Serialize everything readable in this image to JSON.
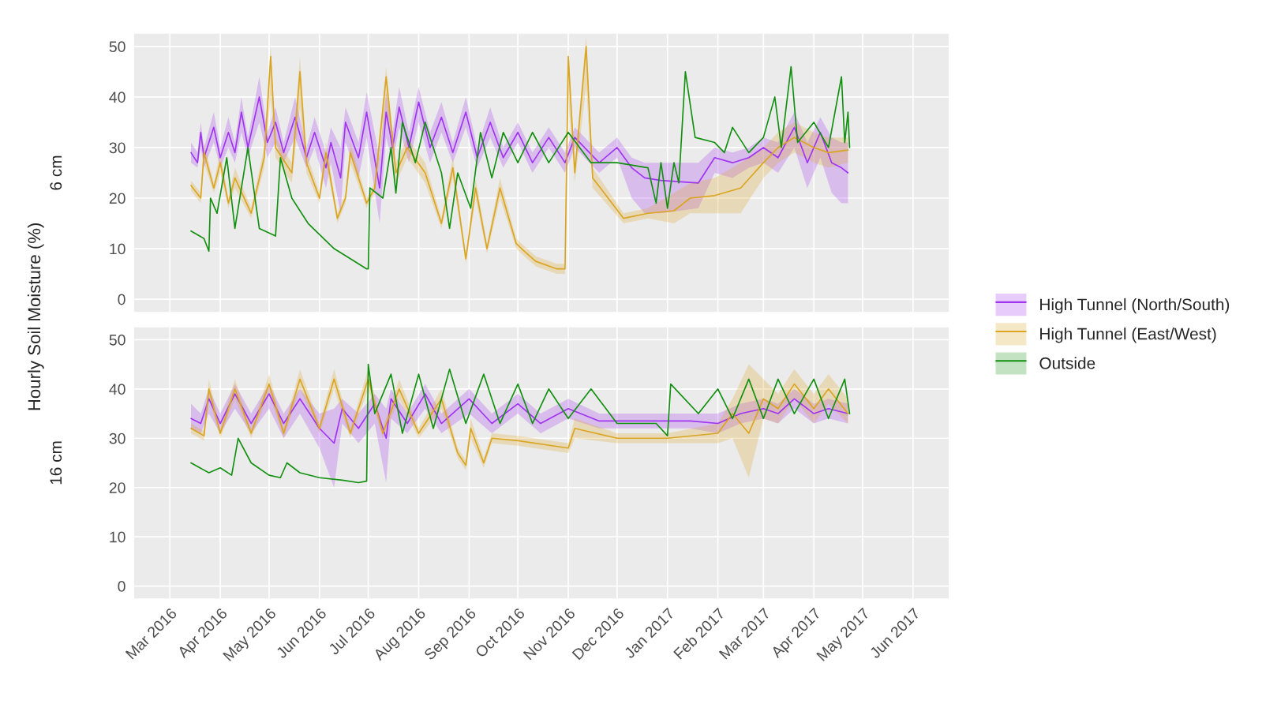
{
  "chart_data": [
    {
      "type": "line",
      "ylabel": "6 cm",
      "annotations": [
        "Hourly Soil Moisture (%)"
      ],
      "xlim": [
        "2016-02-08",
        "2017-06-23"
      ],
      "ylim": [
        -2.5,
        52.5
      ],
      "yticks": [
        0,
        10,
        20,
        30,
        40,
        50
      ],
      "xticks": [
        {
          "value": "2016-03-01",
          "label": null
        },
        {
          "value": "2016-04-01",
          "label": null
        },
        {
          "value": "2016-05-01",
          "label": null
        },
        {
          "value": "2016-06-01",
          "label": null
        },
        {
          "value": "2016-07-01",
          "label": null
        },
        {
          "value": "2016-08-01",
          "label": null
        },
        {
          "value": "2016-09-01",
          "label": null
        },
        {
          "value": "2016-10-01",
          "label": null
        },
        {
          "value": "2016-11-01",
          "label": null
        },
        {
          "value": "2016-12-01",
          "label": null
        },
        {
          "value": "2017-01-01",
          "label": null
        },
        {
          "value": "2017-02-01",
          "label": null
        },
        {
          "value": "2017-03-01",
          "label": null
        },
        {
          "value": "2017-04-01",
          "label": null
        },
        {
          "value": "2017-05-01",
          "label": null
        },
        {
          "value": "2017-06-01",
          "label": null
        }
      ],
      "tick_labels": "y",
      "grid": true,
      "legend": "right",
      "series": [
        {
          "name": "High Tunnel (North/South)",
          "color": "#a034f0",
          "x": [
            "2016-03-14",
            "2016-03-18",
            "2016-03-20",
            "2016-03-22",
            "2016-03-28",
            "2016-04-01",
            "2016-04-06",
            "2016-04-10",
            "2016-04-14",
            "2016-04-18",
            "2016-04-25",
            "2016-04-30",
            "2016-05-05",
            "2016-05-10",
            "2016-05-17",
            "2016-05-24",
            "2016-05-29",
            "2016-06-05",
            "2016-06-08",
            "2016-06-14",
            "2016-06-17",
            "2016-06-25",
            "2016-06-30",
            "2016-07-08",
            "2016-07-12",
            "2016-07-16",
            "2016-07-20",
            "2016-07-26",
            "2016-08-01",
            "2016-08-08",
            "2016-08-15",
            "2016-08-22",
            "2016-08-30",
            "2016-09-06",
            "2016-09-14",
            "2016-09-22",
            "2016-10-01",
            "2016-10-10",
            "2016-10-20",
            "2016-10-30",
            "2016-11-05",
            "2016-11-20",
            "2016-12-01",
            "2016-12-10",
            "2016-12-18",
            "2016-12-28",
            "2017-01-20",
            "2017-01-30",
            "2017-02-10",
            "2017-02-20",
            "2017-03-01",
            "2017-03-10",
            "2017-03-20",
            "2017-03-28",
            "2017-04-05",
            "2017-04-12",
            "2017-04-18",
            "2017-04-22"
          ],
          "values": [
            29,
            27,
            33,
            28,
            34,
            28,
            33,
            29,
            37,
            30,
            40,
            31,
            35,
            29,
            36,
            28,
            33,
            26,
            31,
            24,
            35,
            28,
            37,
            22,
            37,
            30,
            38,
            30,
            39,
            30,
            36,
            29,
            37,
            28,
            35,
            28,
            33,
            27,
            32,
            27,
            32,
            27,
            30,
            26,
            24,
            23.5,
            23,
            28,
            27,
            28,
            30,
            28,
            34,
            27,
            33,
            27,
            26,
            25
          ],
          "lower": [
            27,
            26,
            30,
            26,
            31,
            26,
            30,
            27,
            33,
            28,
            35,
            28,
            31,
            27,
            32,
            26,
            30,
            22,
            27,
            17,
            31,
            24,
            32,
            15,
            32,
            27,
            34,
            27,
            35,
            27,
            33,
            27,
            34,
            26,
            32,
            26,
            31,
            25,
            30,
            25,
            30,
            25,
            28,
            20,
            17,
            17,
            18,
            25,
            24,
            26,
            27,
            25,
            30,
            22,
            28,
            21,
            19,
            19
          ],
          "upper": [
            31,
            29,
            35,
            30,
            37,
            30,
            36,
            31,
            40,
            32,
            44,
            33,
            38,
            31,
            40,
            30,
            36,
            29,
            34,
            30,
            38,
            31,
            41,
            28,
            41,
            33,
            42,
            33,
            42,
            33,
            39,
            31,
            40,
            30,
            38,
            30,
            35,
            29,
            34,
            29,
            34,
            29,
            32,
            28,
            27,
            27,
            27,
            30,
            29,
            30,
            32,
            31,
            37,
            31,
            36,
            32,
            31,
            31
          ]
        },
        {
          "name": "High Tunnel (East/West)",
          "color": "#daa520",
          "x": [
            "2016-03-14",
            "2016-03-20",
            "2016-03-22",
            "2016-03-28",
            "2016-04-01",
            "2016-04-06",
            "2016-04-10",
            "2016-04-20",
            "2016-04-28",
            "2016-05-02",
            "2016-05-05",
            "2016-05-15",
            "2016-05-20",
            "2016-05-24",
            "2016-06-01",
            "2016-06-05",
            "2016-06-12",
            "2016-06-17",
            "2016-06-20",
            "2016-06-30",
            "2016-07-05",
            "2016-07-12",
            "2016-07-18",
            "2016-07-25",
            "2016-08-05",
            "2016-08-15",
            "2016-08-22",
            "2016-08-30",
            "2016-09-05",
            "2016-09-12",
            "2016-09-20",
            "2016-09-30",
            "2016-10-05",
            "2016-10-12",
            "2016-10-25",
            "2016-10-30",
            "2016-11-01",
            "2016-11-05",
            "2016-11-12",
            "2016-11-16",
            "2016-12-05",
            "2016-12-20",
            "2017-01-05",
            "2017-01-15",
            "2017-01-30",
            "2017-02-15",
            "2017-03-01",
            "2017-03-10",
            "2017-03-20",
            "2017-04-01",
            "2017-04-10",
            "2017-04-22"
          ],
          "values": [
            22.5,
            20,
            29,
            22,
            27,
            19,
            24,
            17,
            28,
            48,
            30,
            25,
            45,
            27,
            20,
            29,
            16,
            20,
            29,
            19,
            22,
            44,
            25,
            30,
            25,
            15,
            26,
            8,
            22,
            10,
            22,
            11,
            9.5,
            7.5,
            6,
            6,
            48,
            25,
            50,
            24,
            16,
            17,
            17.5,
            20,
            20.5,
            22,
            27,
            30,
            32,
            30,
            29,
            29.5
          ],
          "lower": [
            21.5,
            19,
            27,
            21,
            25,
            18,
            22,
            16,
            26,
            40,
            28,
            23,
            38,
            25,
            19,
            27,
            15,
            19,
            27,
            18,
            21,
            38,
            23,
            28,
            23,
            14,
            24,
            7,
            20,
            9,
            20,
            10,
            8.5,
            6.5,
            5,
            5,
            40,
            23,
            42,
            22,
            15,
            16,
            15,
            17,
            17,
            17,
            24,
            27,
            29,
            27,
            26,
            27
          ],
          "upper": [
            23.5,
            21,
            31,
            23,
            29,
            20,
            26,
            18,
            30,
            50,
            32,
            27,
            48,
            29,
            21,
            31,
            17,
            21,
            31,
            20,
            23,
            46,
            27,
            32,
            27,
            16,
            28,
            9,
            24,
            11,
            24,
            12,
            10.5,
            8.5,
            7,
            7,
            50,
            27,
            52,
            26,
            17,
            18,
            21,
            23,
            24,
            27,
            30,
            33,
            35,
            33,
            32,
            32
          ]
        },
        {
          "name": "Outside",
          "color": "#12900f",
          "x": [
            "2016-03-14",
            "2016-03-22",
            "2016-03-25",
            "2016-03-26",
            "2016-03-30",
            "2016-04-05",
            "2016-04-10",
            "2016-04-18",
            "2016-04-25",
            "2016-05-05",
            "2016-05-08",
            "2016-05-15",
            "2016-05-25",
            "2016-06-10",
            "2016-06-25",
            "2016-06-30",
            "2016-07-01",
            "2016-07-02",
            "2016-07-10",
            "2016-07-15",
            "2016-07-18",
            "2016-07-22",
            "2016-07-30",
            "2016-08-05",
            "2016-08-15",
            "2016-08-20",
            "2016-08-25",
            "2016-09-02",
            "2016-09-08",
            "2016-09-15",
            "2016-09-22",
            "2016-10-01",
            "2016-10-10",
            "2016-10-20",
            "2016-11-01",
            "2016-11-15",
            "2016-12-01",
            "2016-12-20",
            "2016-12-25",
            "2016-12-28",
            "2017-01-01",
            "2017-01-05",
            "2017-01-08",
            "2017-01-12",
            "2017-01-18",
            "2017-01-30",
            "2017-02-05",
            "2017-02-10",
            "2017-02-20",
            "2017-03-01",
            "2017-03-08",
            "2017-03-12",
            "2017-03-18",
            "2017-03-22",
            "2017-04-01",
            "2017-04-10",
            "2017-04-18",
            "2017-04-20",
            "2017-04-22",
            "2017-04-23"
          ],
          "values": [
            13.5,
            12,
            9.5,
            20,
            17,
            28,
            14,
            30,
            14,
            12.5,
            28,
            20,
            15,
            10,
            7,
            6,
            6,
            22,
            20,
            30,
            21,
            35,
            27,
            35,
            25,
            14,
            25,
            18,
            33,
            24,
            33,
            27,
            33,
            27,
            33,
            27,
            27,
            26,
            19,
            27,
            18,
            27,
            23,
            45,
            32,
            31,
            29,
            34,
            29,
            32,
            40,
            30,
            46,
            31,
            35,
            30,
            44,
            31,
            37,
            30
          ]
        }
      ]
    },
    {
      "type": "line",
      "ylabel": "16 cm",
      "xlim": [
        "2016-02-08",
        "2017-06-23"
      ],
      "ylim": [
        -2.5,
        52.5
      ],
      "yticks": [
        0,
        10,
        20,
        30,
        40,
        50
      ],
      "xticks": [
        {
          "value": "2016-03-01",
          "label": "Mar 2016"
        },
        {
          "value": "2016-04-01",
          "label": "Apr 2016"
        },
        {
          "value": "2016-05-01",
          "label": "May 2016"
        },
        {
          "value": "2016-06-01",
          "label": "Jun 2016"
        },
        {
          "value": "2016-07-01",
          "label": "Jul 2016"
        },
        {
          "value": "2016-08-01",
          "label": "Aug 2016"
        },
        {
          "value": "2016-09-01",
          "label": "Sep 2016"
        },
        {
          "value": "2016-10-01",
          "label": "Oct 2016"
        },
        {
          "value": "2016-11-01",
          "label": "Nov 2016"
        },
        {
          "value": "2016-12-01",
          "label": "Dec 2016"
        },
        {
          "value": "2017-01-01",
          "label": "Jan 2017"
        },
        {
          "value": "2017-02-01",
          "label": "Feb 2017"
        },
        {
          "value": "2017-03-01",
          "label": "Mar 2017"
        },
        {
          "value": "2017-04-01",
          "label": "Apr 2017"
        },
        {
          "value": "2017-05-01",
          "label": "May 2017"
        },
        {
          "value": "2017-06-01",
          "label": "Jun 2017"
        }
      ],
      "grid": true,
      "series": [
        {
          "color": "#a034f0",
          "x": [
            "2016-03-14",
            "2016-03-20",
            "2016-03-25",
            "2016-04-01",
            "2016-04-10",
            "2016-04-20",
            "2016-05-01",
            "2016-05-10",
            "2016-05-20",
            "2016-06-01",
            "2016-06-10",
            "2016-06-15",
            "2016-06-25",
            "2016-07-05",
            "2016-07-12",
            "2016-07-15",
            "2016-07-25",
            "2016-08-05",
            "2016-08-15",
            "2016-09-01",
            "2016-09-15",
            "2016-10-01",
            "2016-10-15",
            "2016-11-01",
            "2016-11-20",
            "2016-12-15",
            "2017-01-15",
            "2017-02-01",
            "2017-02-15",
            "2017-03-01",
            "2017-03-10",
            "2017-03-20",
            "2017-04-01",
            "2017-04-10",
            "2017-04-22"
          ],
          "values": [
            34,
            33,
            38,
            33,
            39,
            33,
            39,
            33,
            38,
            32,
            29,
            36,
            32,
            37,
            30,
            38,
            33,
            39,
            33,
            38,
            33,
            37,
            33,
            36,
            33.5,
            33.5,
            33.5,
            33,
            35,
            36,
            35,
            38,
            35,
            36,
            35
          ],
          "lower": [
            32,
            31,
            35,
            31,
            36,
            31,
            36,
            30,
            35,
            28,
            20,
            33,
            29,
            33,
            21,
            34,
            31,
            36,
            31,
            35,
            31,
            35,
            31,
            34,
            32,
            32,
            32,
            31,
            33,
            34,
            33,
            36,
            33,
            34,
            33
          ],
          "upper": [
            37,
            35,
            40,
            35,
            41,
            35,
            41,
            35,
            40,
            35,
            36,
            38,
            35,
            39,
            36,
            40,
            35,
            41,
            35,
            40,
            35,
            39,
            35,
            38,
            35,
            35,
            35,
            35,
            37,
            38,
            37,
            40,
            37,
            38,
            37
          ]
        },
        {
          "color": "#daa520",
          "x": [
            "2016-03-14",
            "2016-03-22",
            "2016-03-25",
            "2016-04-01",
            "2016-04-10",
            "2016-04-20",
            "2016-05-01",
            "2016-05-10",
            "2016-05-20",
            "2016-06-01",
            "2016-06-10",
            "2016-06-20",
            "2016-07-01",
            "2016-07-10",
            "2016-07-20",
            "2016-08-01",
            "2016-08-15",
            "2016-08-25",
            "2016-08-30",
            "2016-09-02",
            "2016-09-10",
            "2016-09-15",
            "2016-10-01",
            "2016-11-01",
            "2016-11-05",
            "2016-12-01",
            "2017-01-01",
            "2017-02-01",
            "2017-02-10",
            "2017-02-20",
            "2017-03-01",
            "2017-03-10",
            "2017-03-20",
            "2017-04-01",
            "2017-04-10",
            "2017-04-22"
          ],
          "values": [
            32,
            30.5,
            40,
            31,
            40,
            31,
            41,
            31,
            42,
            32,
            42,
            31,
            42,
            31,
            40,
            31,
            38,
            27,
            24.5,
            32,
            25,
            30,
            29.5,
            28,
            32,
            30,
            30,
            31,
            35,
            31,
            38,
            36,
            41,
            36,
            40,
            35
          ],
          "lower": [
            31,
            29.5,
            38,
            30,
            38,
            30,
            39,
            30,
            40,
            31,
            40,
            30,
            40,
            30,
            38,
            30,
            36,
            26,
            23.5,
            30,
            24,
            29,
            28.5,
            27,
            30,
            29,
            29,
            29,
            30,
            22,
            34,
            33,
            38,
            33,
            37,
            33
          ],
          "upper": [
            33,
            31.5,
            42,
            32,
            42,
            32,
            43,
            32,
            44,
            33,
            44,
            32,
            44,
            32,
            42,
            32,
            40,
            28,
            25.5,
            34,
            26,
            31,
            30.5,
            29,
            34,
            31,
            31,
            33,
            38,
            45,
            42,
            39,
            44,
            39,
            43,
            38
          ]
        },
        {
          "color": "#12900f",
          "x": [
            "2016-03-14",
            "2016-03-25",
            "2016-04-01",
            "2016-04-08",
            "2016-04-12",
            "2016-04-20",
            "2016-05-01",
            "2016-05-08",
            "2016-05-12",
            "2016-05-20",
            "2016-06-01",
            "2016-06-15",
            "2016-06-25",
            "2016-06-30",
            "2016-07-01",
            "2016-07-05",
            "2016-07-15",
            "2016-07-22",
            "2016-08-01",
            "2016-08-10",
            "2016-08-20",
            "2016-08-30",
            "2016-09-10",
            "2016-09-20",
            "2016-10-01",
            "2016-10-10",
            "2016-10-20",
            "2016-11-01",
            "2016-11-15",
            "2016-12-01",
            "2016-12-25",
            "2017-01-01",
            "2017-01-03",
            "2017-01-20",
            "2017-02-01",
            "2017-02-10",
            "2017-02-20",
            "2017-03-01",
            "2017-03-10",
            "2017-03-20",
            "2017-04-01",
            "2017-04-10",
            "2017-04-20",
            "2017-04-23"
          ],
          "values": [
            25,
            23,
            24,
            22.5,
            30,
            25,
            22.5,
            22,
            25,
            23,
            22,
            21.5,
            21,
            21.3,
            45,
            35,
            43,
            31,
            43,
            32,
            44,
            33,
            43,
            33,
            41,
            33,
            40,
            34,
            40,
            33,
            33,
            30.5,
            41,
            35,
            40,
            34,
            42,
            34,
            42,
            35,
            42,
            34,
            42,
            35
          ]
        }
      ]
    }
  ]
}
